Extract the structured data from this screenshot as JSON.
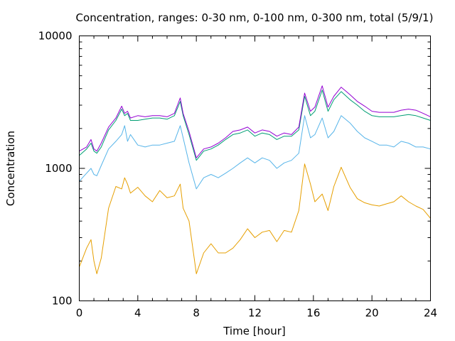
{
  "chart_data": {
    "type": "line",
    "title": "Concentration, ranges: 0-30 nm, 0-100 nm, 0-300 nm, total (5/9/1)",
    "xlabel": "Time [hour]",
    "ylabel": "Concentration",
    "xlim": [
      0,
      24
    ],
    "ylim": [
      100,
      10000
    ],
    "yscale": "log",
    "grid": false,
    "xticks": [
      "0",
      "4",
      "8",
      "12",
      "16",
      "20",
      "24"
    ],
    "yticks": [
      "100",
      "1000",
      "10000"
    ],
    "x": [
      0,
      0.5,
      0.8,
      1.0,
      1.2,
      1.5,
      2.0,
      2.5,
      2.9,
      3.1,
      3.3,
      3.5,
      4.0,
      4.5,
      5.0,
      5.5,
      6.0,
      6.5,
      6.9,
      7.1,
      7.5,
      8.0,
      8.5,
      9.0,
      9.5,
      10.0,
      10.5,
      11.0,
      11.5,
      12.0,
      12.5,
      13.0,
      13.5,
      14.0,
      14.5,
      15.0,
      15.4,
      15.8,
      16.1,
      16.6,
      17.0,
      17.4,
      17.9,
      18.5,
      19.0,
      19.5,
      20.0,
      20.5,
      21.0,
      21.5,
      22.0,
      22.5,
      23.0,
      23.5,
      24.0
    ],
    "series": [
      {
        "color": "#e69f00",
        "values": [
          180,
          250,
          290,
          200,
          160,
          210,
          500,
          730,
          700,
          850,
          760,
          650,
          720,
          620,
          560,
          680,
          600,
          620,
          760,
          500,
          400,
          160,
          230,
          270,
          230,
          230,
          250,
          290,
          350,
          300,
          330,
          340,
          280,
          340,
          330,
          480,
          1080,
          760,
          560,
          640,
          480,
          730,
          1020,
          720,
          590,
          550,
          530,
          520,
          540,
          560,
          620,
          560,
          520,
          490,
          420
        ]
      },
      {
        "color": "#56b4e9",
        "values": [
          800,
          920,
          1000,
          900,
          880,
          1050,
          1400,
          1600,
          1800,
          2100,
          1600,
          1800,
          1500,
          1450,
          1500,
          1500,
          1550,
          1600,
          2100,
          1700,
          1100,
          700,
          850,
          900,
          850,
          920,
          1000,
          1100,
          1200,
          1100,
          1200,
          1150,
          1000,
          1100,
          1150,
          1300,
          2500,
          1700,
          1800,
          2400,
          1700,
          1900,
          2500,
          2200,
          1900,
          1700,
          1600,
          1500,
          1500,
          1450,
          1600,
          1550,
          1450,
          1450,
          1400
        ]
      },
      {
        "color": "#009e73",
        "values": [
          1250,
          1400,
          1550,
          1350,
          1300,
          1450,
          1950,
          2300,
          2800,
          2500,
          2600,
          2300,
          2300,
          2350,
          2400,
          2400,
          2350,
          2500,
          3200,
          2500,
          1800,
          1150,
          1350,
          1400,
          1500,
          1650,
          1800,
          1850,
          1950,
          1750,
          1850,
          1800,
          1650,
          1750,
          1750,
          1950,
          3500,
          2500,
          2700,
          3900,
          2700,
          3300,
          3800,
          3300,
          3000,
          2700,
          2500,
          2450,
          2450,
          2450,
          2500,
          2550,
          2500,
          2400,
          2300
        ]
      },
      {
        "color": "#9400d3",
        "values": [
          1350,
          1450,
          1650,
          1400,
          1350,
          1550,
          2050,
          2400,
          2950,
          2600,
          2700,
          2400,
          2500,
          2450,
          2500,
          2500,
          2450,
          2600,
          3400,
          2600,
          1900,
          1200,
          1400,
          1450,
          1550,
          1700,
          1900,
          1950,
          2050,
          1850,
          1950,
          1900,
          1750,
          1850,
          1800,
          2050,
          3700,
          2700,
          2900,
          4200,
          2900,
          3500,
          4100,
          3600,
          3200,
          2950,
          2700,
          2650,
          2650,
          2650,
          2750,
          2800,
          2750,
          2600,
          2450
        ]
      }
    ]
  }
}
